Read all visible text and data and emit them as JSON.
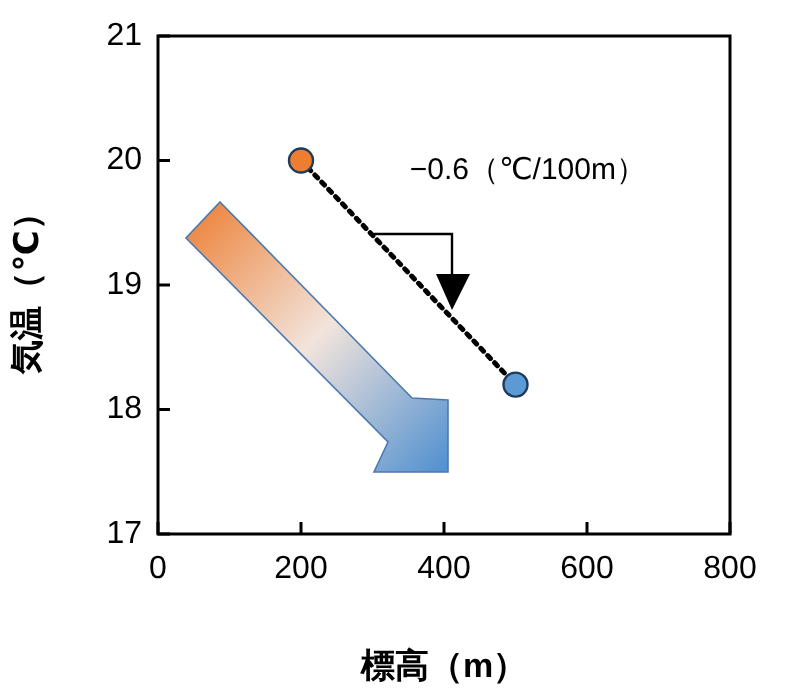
{
  "chart_data": {
    "type": "line",
    "xlabel": "標高（m）",
    "ylabel": "気温（℃）",
    "x": [
      200,
      500
    ],
    "series": [
      {
        "color": "#000000",
        "colors": [
          "#ed7d31",
          "#5b9bd5"
        ],
        "values": [
          20,
          18.2
        ]
      }
    ],
    "xlim": [
      0,
      800
    ],
    "xticks": [
      0,
      200,
      400,
      600,
      800
    ],
    "ylim": [
      17,
      21
    ],
    "yticks": [
      17,
      18,
      19,
      20,
      21
    ],
    "grid": false,
    "legend": false,
    "marker": "circle",
    "line_style": "dotted",
    "annotations": [
      "−0.6（℃/100m）"
    ]
  }
}
